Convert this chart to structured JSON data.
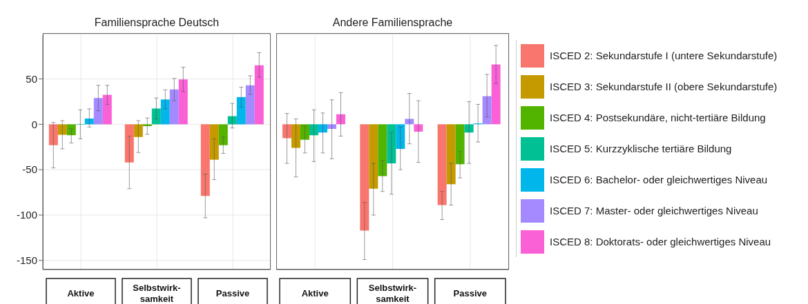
{
  "chart_data": [
    {
      "type": "bar",
      "title": "Familiensprache Deutsch",
      "categories": [
        "Aktive",
        "Selbstwirk-samkeit",
        "Passive"
      ],
      "ylim": [
        -160,
        99
      ],
      "yticks": [
        -150,
        -100,
        -50,
        0,
        50
      ],
      "grid": true,
      "series": [
        {
          "color": "#f8766d",
          "values": [
            -23,
            -42,
            -79
          ],
          "errors": [
            [
              -48,
              2
            ],
            [
              -71,
              -13
            ],
            [
              -103,
              -55
            ]
          ]
        },
        {
          "color": "#c49a00",
          "values": [
            -11.5,
            -14,
            -39
          ],
          "errors": [
            [
              -27,
              4
            ],
            [
              -31,
              4
            ],
            [
              -61,
              -16
            ]
          ]
        },
        {
          "color": "#53b400",
          "values": [
            -12,
            -2,
            -23
          ],
          "errors": [
            [
              -20.5,
              -5
            ],
            [
              -11,
              7
            ],
            [
              -32,
              -14
            ]
          ]
        },
        {
          "color": "#00c094",
          "values": [
            -0.5,
            17.4,
            9
          ],
          "errors": [
            [
              -16,
              16
            ],
            [
              6,
              29
            ],
            [
              -4,
              23
            ]
          ]
        },
        {
          "color": "#00b6eb",
          "values": [
            6.4,
            27.4,
            30
          ],
          "errors": [
            [
              -3,
              17
            ],
            [
              17,
              38
            ],
            [
              19,
              41
            ]
          ]
        },
        {
          "color": "#a58aff",
          "values": [
            29,
            38.5,
            43
          ],
          "errors": [
            [
              15,
              43
            ],
            [
              26,
              50.5
            ],
            [
              33,
              53.5
            ]
          ]
        },
        {
          "color": "#fb61d7",
          "values": [
            32.5,
            49.5,
            65
          ],
          "errors": [
            [
              22,
              43
            ],
            [
              36,
              63
            ],
            [
              52,
              79
            ]
          ]
        }
      ]
    },
    {
      "type": "bar",
      "title": "Andere Familiensprache",
      "categories": [
        "Aktive",
        "Selbstwirk-samkeit",
        "Passive"
      ],
      "ylim": [
        -160,
        99
      ],
      "yticks": [
        -150,
        -100,
        -50,
        0,
        50
      ],
      "grid": true,
      "legend": "right",
      "tick_labels": "x",
      "series": [
        {
          "name": "ISCED 2: Sekundarstufe I (untere Sekundarstufe)",
          "color": "#f8766d",
          "values": [
            -15.4,
            -117,
            -89
          ],
          "errors": [
            [
              -43,
              12
            ],
            [
              -149,
              -86
            ],
            [
              -105,
              -74
            ]
          ]
        },
        {
          "name": "ISCED 3: Sekundarstufe II (obere Sekundarstufe)",
          "color": "#c49a00",
          "values": [
            -26,
            -71,
            -66
          ],
          "errors": [
            [
              -58,
              6
            ],
            [
              -100,
              -43
            ],
            [
              -89,
              -43
            ]
          ]
        },
        {
          "name": "ISCED 4: Postsekundäre, nicht-tertiäre Bildung",
          "color": "#53b400",
          "values": [
            -17,
            -57,
            -44
          ],
          "errors": [
            [
              -31.5,
              -2
            ],
            [
              -74,
              -40
            ],
            [
              -59,
              -30
            ]
          ]
        },
        {
          "name": "ISCED 5: Kurzzyklische tertiäre Bildung",
          "color": "#00c094",
          "values": [
            -12,
            -43,
            -9
          ],
          "errors": [
            [
              -41,
              16
            ],
            [
              -77,
              -9
            ],
            [
              -43,
              25
            ]
          ]
        },
        {
          "name": "ISCED 6: Bachelor- oder gleichwertiges Niveau",
          "color": "#00b6eb",
          "values": [
            -9,
            -27,
            1
          ],
          "errors": [
            [
              -31.5,
              12.5
            ],
            [
              -50,
              -3
            ],
            [
              -19.5,
              22
            ]
          ]
        },
        {
          "name": "ISCED 7: Master- oder gleichwertiges Niveau",
          "color": "#a58aff",
          "values": [
            -5,
            6,
            31
          ],
          "errors": [
            [
              -38,
              27
            ],
            [
              -21.5,
              34
            ],
            [
              8,
              55
            ]
          ]
        },
        {
          "name": "ISCED 8: Doktorats- oder gleichwertiges Niveau",
          "color": "#fb61d7",
          "values": [
            11,
            -8,
            66
          ],
          "errors": [
            [
              -13,
              35
            ],
            [
              -42,
              26
            ],
            [
              45,
              87
            ]
          ]
        }
      ]
    }
  ]
}
